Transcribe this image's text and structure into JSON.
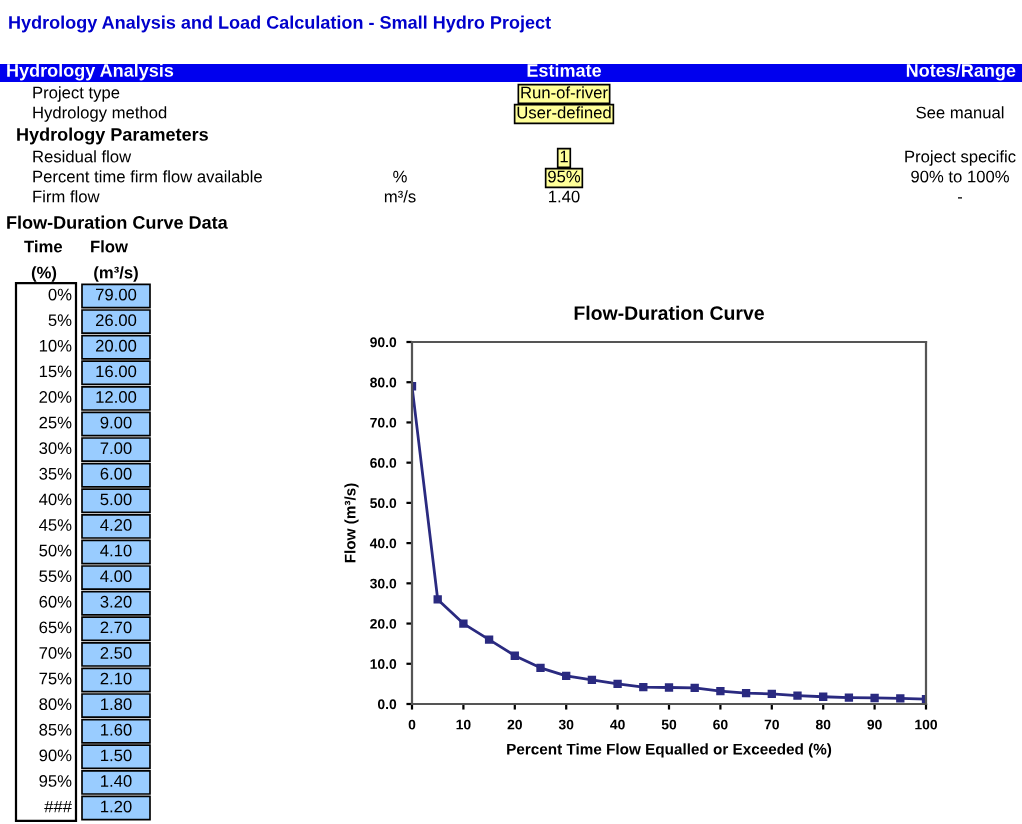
{
  "chart_data": {
    "type": "line",
    "title": "Flow-Duration Curve",
    "xlabel": "Percent Time Flow Equalled or Exceeded (%)",
    "ylabel": "Flow (m³/s)",
    "x": [
      0,
      5,
      10,
      15,
      20,
      25,
      30,
      35,
      40,
      45,
      50,
      55,
      60,
      65,
      70,
      75,
      80,
      85,
      90,
      95,
      100
    ],
    "series": [
      {
        "color": "#2a2a80",
        "values": [
          79.0,
          26.0,
          20.0,
          16.0,
          12.0,
          9.0,
          7.0,
          6.0,
          5.0,
          4.2,
          4.1,
          4.0,
          3.2,
          2.7,
          2.5,
          2.1,
          1.8,
          1.6,
          1.5,
          1.4,
          1.2
        ]
      }
    ],
    "marker": "square",
    "grid": false,
    "legend": false,
    "xlim": [
      0,
      100
    ],
    "ylim": [
      0,
      90
    ],
    "xticks": [
      0,
      10,
      20,
      30,
      40,
      50,
      60,
      70,
      80,
      90,
      100
    ],
    "yticks": [
      {
        "value": 0,
        "label": "0.0"
      },
      {
        "value": 10,
        "label": "10.0"
      },
      {
        "value": 20,
        "label": "20.0"
      },
      {
        "value": 30,
        "label": "30.0"
      },
      {
        "value": 40,
        "label": "40.0"
      },
      {
        "value": 50,
        "label": "50.0"
      },
      {
        "value": 60,
        "label": "60.0"
      },
      {
        "value": 70,
        "label": "70.0"
      },
      {
        "value": 80,
        "label": "80.0"
      },
      {
        "value": 90,
        "label": "90.0"
      }
    ],
    "annotations": [
      "Hydrology Analysis and Load Calculation - Small Hydro Project",
      "Hydrology Analysis",
      "Estimate",
      "Notes/Range",
      "Project type",
      "Run-of-river",
      "Hydrology method",
      "User-defined",
      "See manual",
      "Hydrology Parameters",
      "Residual flow",
      "1",
      "Project specific",
      "Percent time firm flow available",
      "%",
      "95%",
      "90% to 100%",
      "Firm flow",
      "m³/s",
      "1.40",
      "-",
      "Flow-Duration Curve Data",
      "Time",
      "Flow",
      "(%)",
      "(m³/s)",
      "0%",
      "5%",
      "10%",
      "15%",
      "20%",
      "25%",
      "30%",
      "35%",
      "40%",
      "45%",
      "50%",
      "55%",
      "60%",
      "65%",
      "70%",
      "75%",
      "80%",
      "85%",
      "90%",
      "95%",
      "###",
      "79.00",
      "26.00",
      "20.00",
      "16.00",
      "12.00",
      "9.00",
      "7.00",
      "6.00",
      "5.00",
      "4.20",
      "4.10",
      "4.00",
      "3.20",
      "2.70",
      "2.50",
      "2.10",
      "1.80",
      "1.60",
      "1.50",
      "1.40",
      "1.20"
    ]
  }
}
